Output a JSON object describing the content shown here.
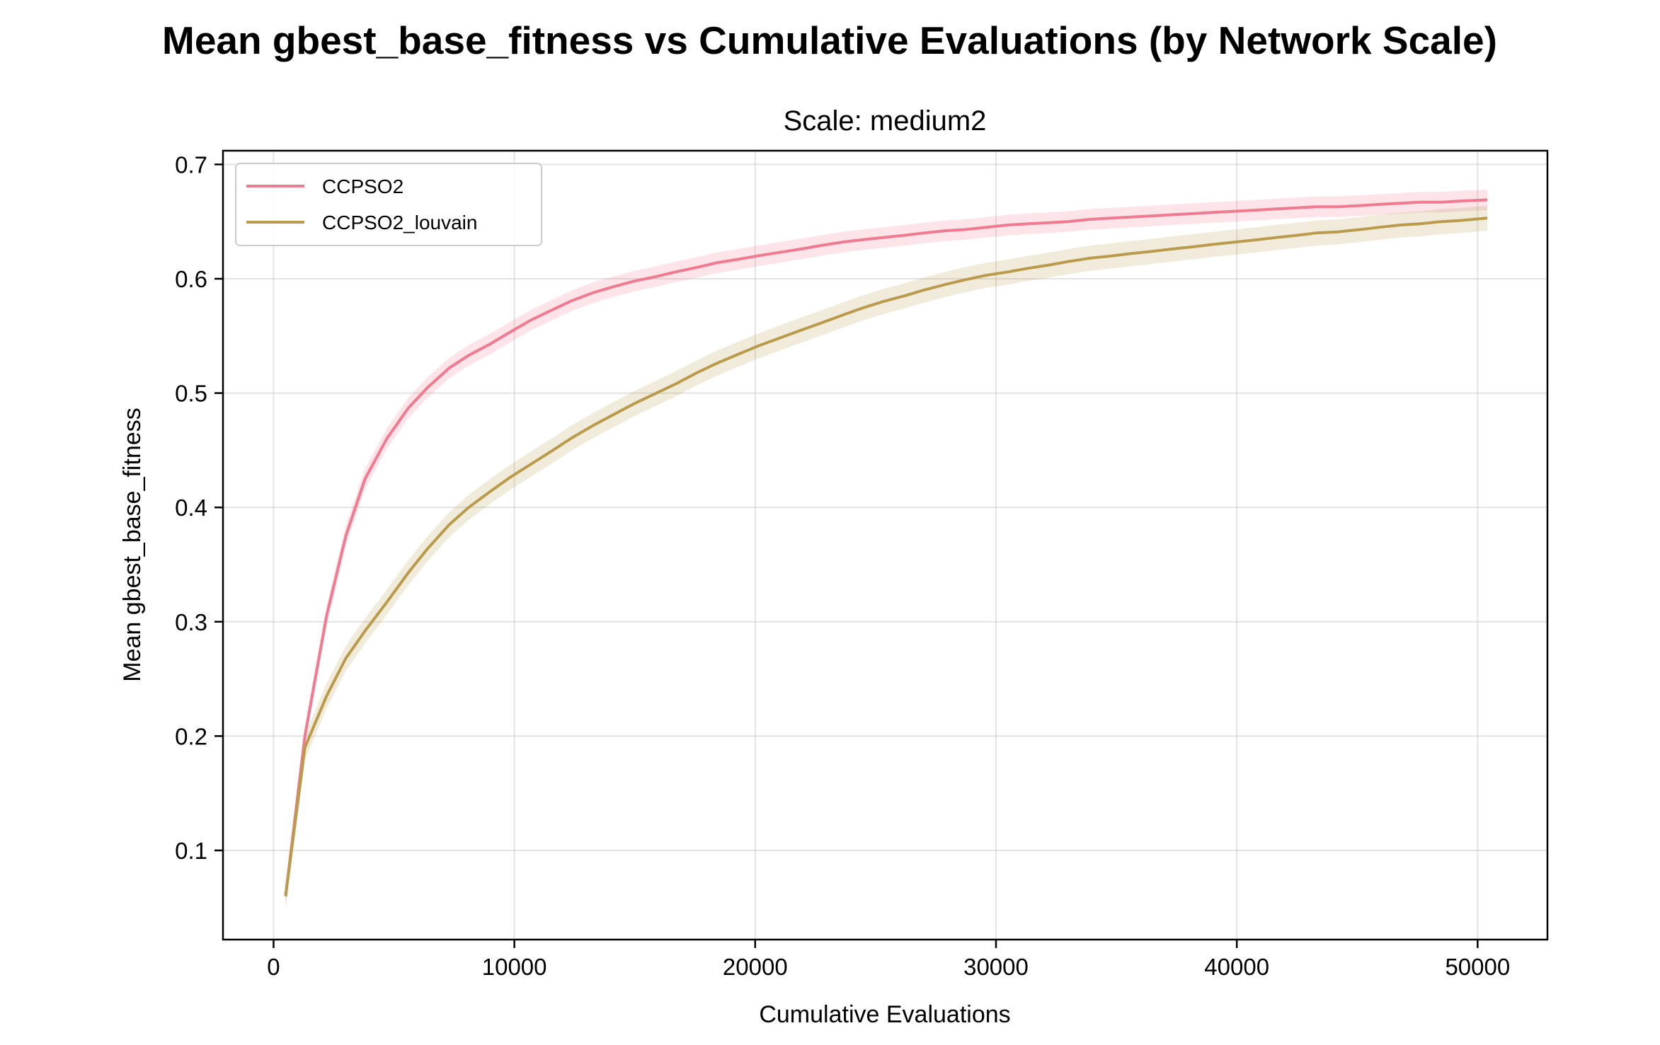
{
  "chart_data": {
    "type": "line",
    "title": "Mean gbest_base_fitness vs Cumulative Evaluations (by Network Scale)",
    "subtitle": "Scale: medium2",
    "xlabel": "Cumulative Evaluations",
    "ylabel": "Mean gbest_base_fitness",
    "xlim": [
      -2100,
      52900
    ],
    "ylim": [
      0.022,
      0.712
    ],
    "xticks": [
      0,
      10000,
      20000,
      30000,
      40000,
      50000
    ],
    "yticks": [
      0.1,
      0.2,
      0.3,
      0.4,
      0.5,
      0.6,
      0.7
    ],
    "grid": true,
    "legend": "top-left",
    "series": [
      {
        "name": "CCPSO2",
        "color": "#f07a8f",
        "x": [
          500,
          1300,
          2200,
          3000,
          3800,
          4700,
          5600,
          6400,
          7300,
          8100,
          9000,
          9800,
          10700,
          11600,
          12400,
          13300,
          14100,
          15000,
          15900,
          16700,
          17600,
          18400,
          19300,
          20100,
          21000,
          21900,
          22700,
          23600,
          24400,
          25300,
          26200,
          27000,
          27900,
          28700,
          29600,
          30500,
          31300,
          32200,
          33000,
          33900,
          34800,
          35600,
          36500,
          37300,
          38200,
          39000,
          39900,
          40800,
          41600,
          42500,
          43300,
          44200,
          45100,
          45900,
          46800,
          47600,
          48500,
          49300,
          50400
        ],
        "y": [
          0.06,
          0.2,
          0.305,
          0.375,
          0.425,
          0.46,
          0.487,
          0.505,
          0.522,
          0.533,
          0.543,
          0.553,
          0.564,
          0.573,
          0.581,
          0.588,
          0.593,
          0.598,
          0.602,
          0.606,
          0.61,
          0.614,
          0.617,
          0.62,
          0.623,
          0.626,
          0.629,
          0.632,
          0.634,
          0.636,
          0.638,
          0.64,
          0.642,
          0.643,
          0.645,
          0.647,
          0.648,
          0.649,
          0.65,
          0.652,
          0.653,
          0.654,
          0.655,
          0.656,
          0.657,
          0.658,
          0.659,
          0.66,
          0.661,
          0.662,
          0.663,
          0.663,
          0.664,
          0.665,
          0.666,
          0.667,
          0.667,
          0.668,
          0.669
        ],
        "band": 0.009
      },
      {
        "name": "CCPSO2_louvain",
        "color": "#b99b4b",
        "x": [
          500,
          1300,
          2200,
          3000,
          3800,
          4700,
          5600,
          6400,
          7300,
          8100,
          9000,
          9800,
          10700,
          11600,
          12400,
          13300,
          14100,
          15000,
          15900,
          16700,
          17600,
          18400,
          19300,
          20100,
          21000,
          21900,
          22700,
          23600,
          24400,
          25300,
          26200,
          27000,
          27900,
          28700,
          29600,
          30500,
          31300,
          32200,
          33000,
          33900,
          34800,
          35600,
          36500,
          37300,
          38200,
          39000,
          39900,
          40800,
          41600,
          42500,
          43300,
          44200,
          45100,
          45900,
          46800,
          47600,
          48500,
          49300,
          50400
        ],
        "y": [
          0.06,
          0.19,
          0.235,
          0.268,
          0.292,
          0.317,
          0.343,
          0.364,
          0.385,
          0.4,
          0.414,
          0.426,
          0.438,
          0.45,
          0.461,
          0.472,
          0.481,
          0.491,
          0.5,
          0.508,
          0.518,
          0.526,
          0.534,
          0.541,
          0.548,
          0.555,
          0.561,
          0.568,
          0.574,
          0.58,
          0.585,
          0.59,
          0.595,
          0.599,
          0.603,
          0.606,
          0.609,
          0.612,
          0.615,
          0.618,
          0.62,
          0.622,
          0.624,
          0.626,
          0.628,
          0.63,
          0.632,
          0.634,
          0.636,
          0.638,
          0.64,
          0.641,
          0.643,
          0.645,
          0.647,
          0.648,
          0.65,
          0.651,
          0.653
        ],
        "band": 0.011
      }
    ]
  }
}
